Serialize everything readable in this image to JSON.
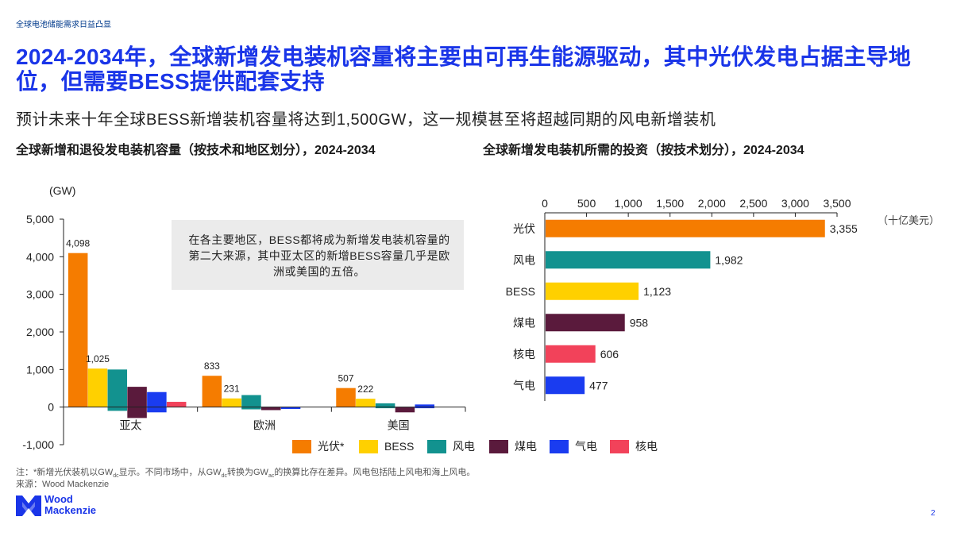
{
  "section_label": "全球电池储能需求日益凸显",
  "headline": "2024-2034年，全球新增发电装机容量将主要由可再生能源驱动，其中光伏发电占据主导地位，但需要BESS提供配套支持",
  "subheadline": "预计未来十年全球BESS新增装机容量将达到1,500GW，这一规模甚至将超越同期的风电新增装机",
  "left_chart": {
    "title": "全球新增和退役发电装机容量（按技术和地区划分），2024-2034",
    "unit": "(GW)",
    "callout": "在各主要地区，BESS都将成为新增发电装机容量的第二大来源，其中亚太区的新增BESS容量几乎是欧洲或美国的五倍。"
  },
  "right_chart": {
    "title": "全球新增发电装机所需的投资（按技术划分），2024-2034",
    "unit": "（十亿美元）"
  },
  "footnote": {
    "prefix": "注：*新增光伏装机以GW",
    "sub1": "dc",
    "mid": "显示。不同市场中，从GW",
    "sub2": "dc",
    "mid2": "转换为GW",
    "sub3": "ac",
    "suffix": "的换算比存在差异。风电包括陆上风电和海上风电。"
  },
  "source": "来源：Wood Mackenzie",
  "logo": {
    "line1": "Wood",
    "line2": "Mackenzie"
  },
  "page_number": "2",
  "colors": {
    "solar": "#f57c00",
    "bess": "#ffd000",
    "wind": "#12928f",
    "coal": "#5a1a3c",
    "gas": "#1a3cf0",
    "nuclear": "#f2425a",
    "brand": "#1a35e8"
  },
  "chart_data": [
    {
      "type": "bar",
      "title": "全球新增和退役发电装机容量（按技术和地区划分），2024-2034",
      "ylabel": "(GW)",
      "categories": [
        "亚太",
        "欧洲",
        "美国"
      ],
      "ylim": [
        -1000,
        5000
      ],
      "yticks": [
        -1000,
        0,
        1000,
        2000,
        3000,
        4000,
        5000
      ],
      "ytick_labels": [
        "-1,000",
        "0",
        "1,000",
        "2,000",
        "3,000",
        "4,000",
        "5,000"
      ],
      "series": [
        {
          "name": "光伏*",
          "color_key": "solar",
          "values": [
            4098,
            833,
            507
          ],
          "labels": [
            "4,098",
            "833",
            "507"
          ]
        },
        {
          "name": "BESS",
          "color_key": "bess",
          "values": [
            1025,
            231,
            222
          ],
          "labels": [
            "1,025",
            "231",
            "222"
          ]
        },
        {
          "name": "风电",
          "color_key": "wind",
          "values": [
            1000,
            320,
            100
          ]
        },
        {
          "name": "煤电",
          "color_key": "coal",
          "values": [
            540,
            -80,
            -140
          ]
        },
        {
          "name": "气电",
          "color_key": "gas",
          "values": [
            400,
            0,
            70
          ]
        },
        {
          "name": "核电",
          "color_key": "nuclear",
          "values": [
            140,
            0,
            0
          ]
        }
      ],
      "extra_values": [
        {
          "series": "风电",
          "category": "亚太",
          "value": -100
        },
        {
          "series": "煤电",
          "category": "亚太",
          "value": -290
        },
        {
          "series": "气电",
          "category": "亚太",
          "value": -140
        },
        {
          "series": "风电",
          "category": "欧洲",
          "value": -60
        },
        {
          "series": "气电",
          "category": "欧洲",
          "value": -50
        },
        {
          "series": "风电",
          "category": "美国",
          "value": -30
        },
        {
          "series": "气电",
          "category": "美国",
          "value": -30
        }
      ],
      "legend_position": "bottom",
      "grid": false
    },
    {
      "type": "bar",
      "orientation": "horizontal",
      "title": "全球新增发电装机所需的投资（按技术划分），2024-2034",
      "xlabel": "（十亿美元）",
      "xlim": [
        0,
        3500
      ],
      "xticks": [
        0,
        500,
        1000,
        1500,
        2000,
        2500,
        3000,
        3500
      ],
      "xtick_labels": [
        "0",
        "500",
        "1,000",
        "1,500",
        "2,000",
        "2,500",
        "3,000",
        "3,500"
      ],
      "categories": [
        "光伏",
        "风电",
        "BESS",
        "煤电",
        "核电",
        "气电"
      ],
      "color_keys": [
        "solar",
        "wind",
        "bess",
        "coal",
        "nuclear",
        "gas"
      ],
      "values": [
        3355,
        1982,
        1123,
        958,
        606,
        477
      ],
      "labels": [
        "3,355",
        "1,982",
        "1,123",
        "958",
        "606",
        "477"
      ],
      "grid": false
    }
  ]
}
